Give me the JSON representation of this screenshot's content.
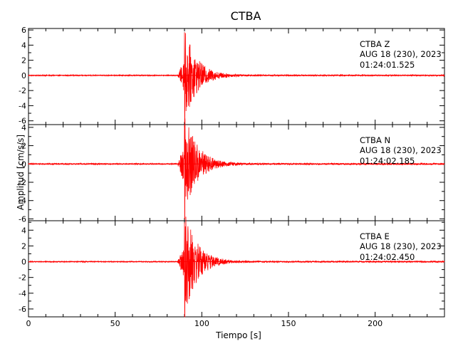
{
  "chart_data": {
    "type": "line",
    "title": "CTBA",
    "xlabel": "Tiempo [s]",
    "ylabel": "Amplitud [cm/s/s]",
    "xlim": [
      0,
      240
    ],
    "x_ticks": [
      0,
      50,
      100,
      150,
      200
    ],
    "trace_color": "#ff0000",
    "grid": false,
    "panels": [
      {
        "station": "CTBA",
        "component": "Z",
        "date": "AUG 18 (230), 2023",
        "time": "01:24:01.525",
        "ylim": [
          -6.5,
          6.2
        ],
        "y_ticks": [
          -6,
          -4,
          -2,
          0,
          2,
          4,
          6
        ],
        "p_arrival_s": 86,
        "peak_time_s": 90,
        "peak_positive": 5.7,
        "peak_negative": -6.3,
        "coda_end_s": 140
      },
      {
        "station": "CTBA",
        "component": "N",
        "date": "AUG 18 (230), 2023",
        "time": "01:24:02.185",
        "ylim": [
          -6.2,
          4.3
        ],
        "y_ticks": [
          -6,
          -4,
          -2,
          0,
          2,
          4
        ],
        "p_arrival_s": 86,
        "peak_time_s": 90,
        "peak_positive": 4.3,
        "peak_negative": -6.0,
        "coda_end_s": 140
      },
      {
        "station": "CTBA",
        "component": "E",
        "date": "AUG 18 (230), 2023",
        "time": "01:24:02.450",
        "ylim": [
          -7.0,
          5.2
        ],
        "y_ticks": [
          -6,
          -4,
          -2,
          0,
          2,
          4
        ],
        "p_arrival_s": 86,
        "peak_time_s": 90,
        "peak_positive": 5.0,
        "peak_negative": -7.0,
        "coda_end_s": 140
      }
    ]
  }
}
